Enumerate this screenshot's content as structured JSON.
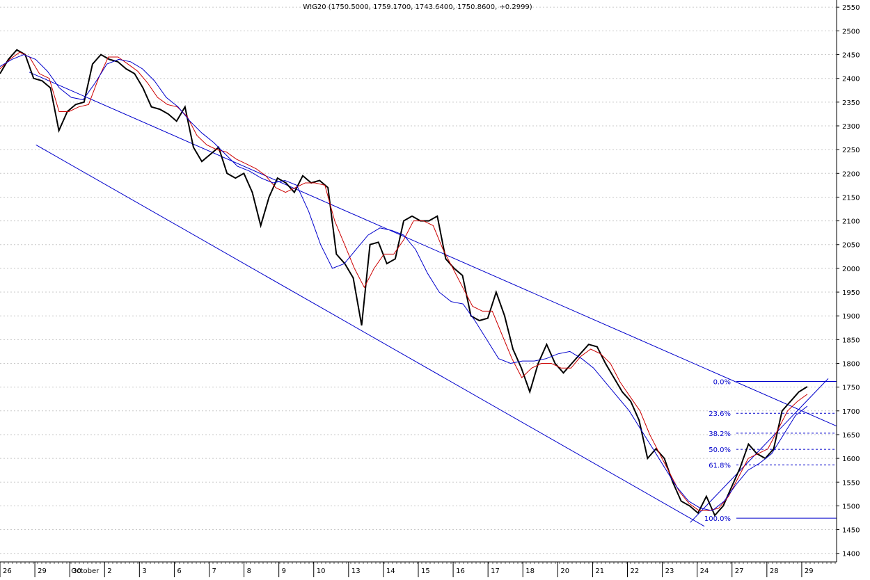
{
  "chart_data": {
    "type": "line",
    "title": "WIG20 (1750.5000, 1759.1700, 1743.6400, 1750.8600, +0.2999)",
    "x_labels": [
      "26",
      "29",
      "30",
      "October",
      "2",
      "3",
      "6",
      "7",
      "8",
      "9",
      "10",
      "13",
      "14",
      "15",
      "16",
      "17",
      "18",
      "20",
      "21",
      "22",
      "23",
      "24",
      "27",
      "28",
      "29"
    ],
    "y_ticks": [
      1400,
      1450,
      1500,
      1550,
      1600,
      1650,
      1700,
      1750,
      1800,
      1850,
      1900,
      1950,
      2000,
      2050,
      2100,
      2150,
      2200,
      2250,
      2300,
      2350,
      2400,
      2450,
      2500,
      2550
    ],
    "ylim": [
      1382,
      2565
    ],
    "grid": true,
    "y_axis_side": "right",
    "series": [
      {
        "key": "price",
        "color": "#000000",
        "values": [
          2410,
          2440,
          2460,
          2450,
          2400,
          2395,
          2380,
          2290,
          2330,
          2345,
          2350,
          2430,
          2450,
          2440,
          2435,
          2420,
          2410,
          2380,
          2340,
          2335,
          2325,
          2310,
          2340,
          2255,
          2225,
          2240,
          2255,
          2200,
          2190,
          2200,
          2160,
          2090,
          2150,
          2190,
          2180,
          2160,
          2195,
          2180,
          2185,
          2170,
          2030,
          2010,
          1980,
          1880,
          2050,
          2055,
          2010,
          2020,
          2100,
          2110,
          2100,
          2100,
          2110,
          2020,
          2000,
          1985,
          1900,
          1890,
          1895,
          1950,
          1900,
          1830,
          1790,
          1740,
          1800,
          1840,
          1800,
          1780,
          1800,
          1820,
          1840,
          1835,
          1800,
          1770,
          1740,
          1720,
          1680,
          1600,
          1620,
          1600,
          1550,
          1510,
          1500,
          1485,
          1520,
          1480,
          1500,
          1540,
          1580,
          1630,
          1610,
          1600,
          1620,
          1700,
          1720,
          1740,
          1751
        ]
      },
      {
        "key": "ma-fast",
        "color": "#cc0000",
        "values": [
          2420,
          2440,
          2455,
          2445,
          2410,
          2400,
          2330,
          2330,
          2340,
          2345,
          2400,
          2445,
          2445,
          2430,
          2415,
          2390,
          2360,
          2345,
          2340,
          2320,
          2280,
          2260,
          2250,
          2245,
          2230,
          2220,
          2210,
          2195,
          2170,
          2160,
          2170,
          2180,
          2180,
          2175,
          2100,
          2050,
          2000,
          1960,
          2000,
          2030,
          2030,
          2060,
          2100,
          2100,
          2090,
          2040,
          2000,
          1960,
          1920,
          1910,
          1910,
          1860,
          1810,
          1770,
          1790,
          1800,
          1800,
          1790,
          1790,
          1815,
          1830,
          1820,
          1800,
          1760,
          1730,
          1700,
          1650,
          1610,
          1570,
          1530,
          1505,
          1490,
          1490,
          1495,
          1520,
          1560,
          1600,
          1610,
          1620,
          1660,
          1700,
          1720,
          1735
        ]
      },
      {
        "key": "ma-slow",
        "color": "#0000cc",
        "values": [
          2425,
          2440,
          2450,
          2440,
          2415,
          2380,
          2360,
          2355,
          2390,
          2430,
          2440,
          2435,
          2420,
          2395,
          2360,
          2340,
          2310,
          2285,
          2265,
          2240,
          2215,
          2205,
          2190,
          2180,
          2185,
          2175,
          2120,
          2050,
          2000,
          2010,
          2040,
          2070,
          2085,
          2080,
          2070,
          2040,
          1990,
          1950,
          1930,
          1925,
          1890,
          1850,
          1810,
          1800,
          1805,
          1805,
          1810,
          1820,
          1825,
          1810,
          1790,
          1760,
          1730,
          1700,
          1660,
          1620,
          1580,
          1540,
          1510,
          1495,
          1490,
          1510,
          1545,
          1575,
          1590,
          1610,
          1650,
          1690,
          1710
        ]
      }
    ],
    "trendlines": [
      {
        "from": [
          0.035,
          2413
        ],
        "to": [
          1.0,
          1668
        ]
      },
      {
        "from": [
          0.043,
          2260
        ],
        "to": [
          0.842,
          1457
        ]
      },
      {
        "from": [
          0.825,
          1465
        ],
        "to": [
          0.99,
          1768
        ]
      }
    ],
    "fibonacci": [
      {
        "label": "0.0%",
        "value": 1762
      },
      {
        "label": "23.6%",
        "value": 1695
      },
      {
        "label": "38.2%",
        "value": 1653
      },
      {
        "label": "50.0%",
        "value": 1619
      },
      {
        "label": "61.8%",
        "value": 1586
      },
      {
        "label": "100.0%",
        "value": 1474
      }
    ]
  }
}
